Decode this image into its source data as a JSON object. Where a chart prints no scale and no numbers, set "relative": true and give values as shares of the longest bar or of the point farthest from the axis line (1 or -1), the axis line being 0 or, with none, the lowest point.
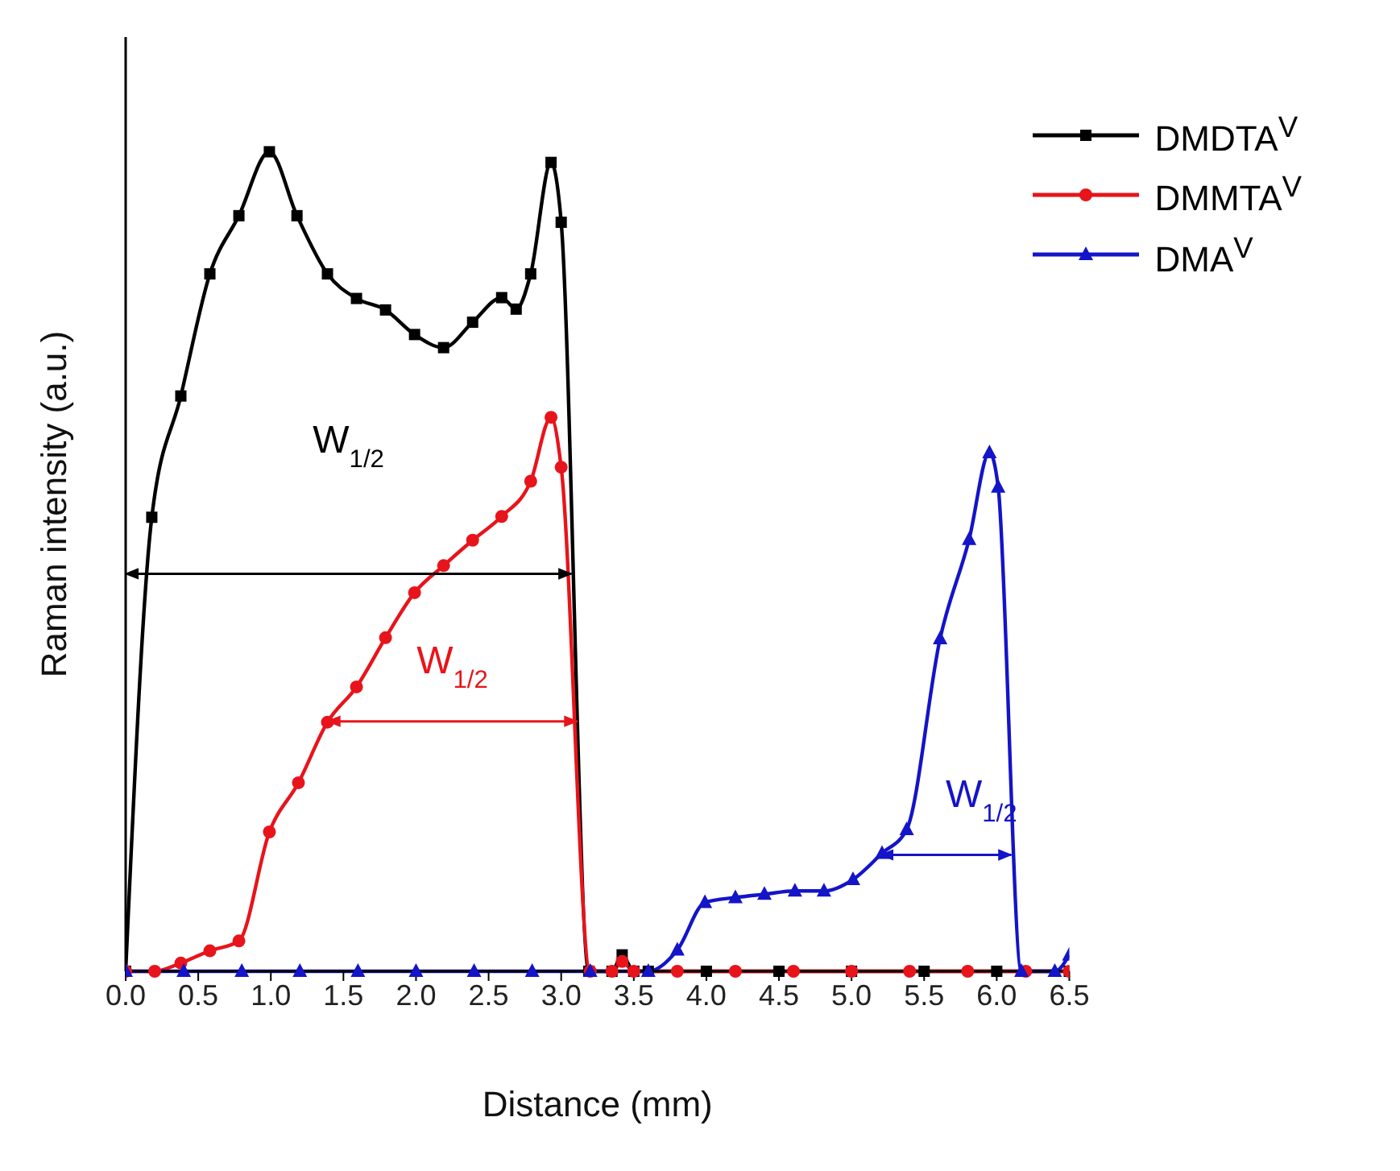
{
  "chart_data": {
    "type": "line",
    "relative": true,
    "xlabel": "Distance (mm)",
    "ylabel": "Raman intensity (a.u.)",
    "xlim": [
      0,
      6.5
    ],
    "xticks": [
      {
        "value": 0,
        "label": "0.0"
      },
      0.5,
      {
        "value": 1,
        "label": "1.0"
      },
      1.5,
      {
        "value": 2,
        "label": "2.0"
      },
      2.5,
      {
        "value": 3,
        "label": "3.0"
      },
      3.5,
      {
        "value": 4,
        "label": "4.0"
      },
      4.5,
      {
        "value": 5,
        "label": "5.0"
      },
      5.5,
      {
        "value": 6,
        "label": "6.0"
      },
      6.5
    ],
    "legend": "top right",
    "grid": false,
    "line_style": "solid",
    "series": [
      {
        "name": "DMDTA$^{V}$",
        "color": "#000000",
        "marker": "square",
        "x": [
          0,
          0.18,
          0.38,
          0.58,
          0.78,
          0.99,
          1.18,
          1.39,
          1.59,
          1.79,
          1.99,
          2.19,
          2.39,
          2.59,
          2.69,
          2.79,
          2.93,
          3.0,
          3.19,
          3.35,
          3.42,
          3.5,
          3.6,
          4,
          4.5,
          5,
          5.5,
          6,
          6.5
        ],
        "values": [
          0,
          0.554,
          0.702,
          0.851,
          0.922,
          1,
          0.922,
          0.851,
          0.821,
          0.807,
          0.777,
          0.761,
          0.792,
          0.822,
          0.808,
          0.851,
          0.987,
          0.914,
          0,
          0,
          0.02,
          0,
          0,
          0,
          0,
          0,
          0,
          0,
          0
        ]
      },
      {
        "name": "DMMTA$^{V}$",
        "color": "#e8141b",
        "marker": "circle",
        "x": [
          0,
          0.2,
          0.38,
          0.58,
          0.78,
          0.99,
          1.19,
          1.39,
          1.59,
          1.79,
          1.99,
          2.19,
          2.39,
          2.59,
          2.79,
          2.93,
          3.0,
          3.2,
          3.35,
          3.42,
          3.5,
          3.8,
          4.2,
          4.6,
          5,
          5.4,
          5.8,
          6.2,
          6.5
        ],
        "values": [
          0,
          0,
          0.01,
          0.025,
          0.037,
          0.17,
          0.23,
          0.304,
          0.347,
          0.407,
          0.462,
          0.495,
          0.526,
          0.555,
          0.598,
          0.676,
          0.615,
          0,
          0,
          0.012,
          0,
          0,
          0,
          0,
          0,
          0,
          0,
          0,
          0
        ]
      },
      {
        "name": "DMA$^{V}$",
        "color": "#1414c8",
        "marker": "triangle",
        "x": [
          0,
          0.4,
          0.8,
          1.2,
          1.6,
          2.0,
          2.4,
          2.8,
          3.2,
          3.6,
          3.8,
          3.99,
          4.2,
          4.4,
          4.61,
          4.81,
          5.01,
          5.21,
          5.38,
          5.61,
          5.81,
          5.95,
          6.01,
          6.17,
          6.4,
          6.5
        ],
        "values": [
          0,
          0,
          0,
          0,
          0,
          0,
          0,
          0,
          0,
          0,
          0.026,
          0.084,
          0.09,
          0.094,
          0.098,
          0.098,
          0.112,
          0.144,
          0.173,
          0.406,
          0.527,
          0.633,
          0.591,
          0,
          0,
          0.02
        ]
      },
      {
        "color": "#000000",
        "marker": "none",
        "x": [
          0,
          3.07
        ],
        "values": [
          0.485,
          0.485
        ]
      },
      {
        "color": "#e8141b",
        "marker": "none",
        "x": [
          1.39,
          3.11
        ],
        "values": [
          0.305,
          0.305
        ]
      },
      {
        "color": "#1414c8",
        "marker": "none",
        "x": [
          5.2,
          6.1
        ],
        "values": [
          0.142,
          0.142
        ]
      }
    ],
    "annotations": [
      "W$_{1/2}$",
      "W$_{1/2}$",
      "W$_{1/2}$"
    ]
  }
}
